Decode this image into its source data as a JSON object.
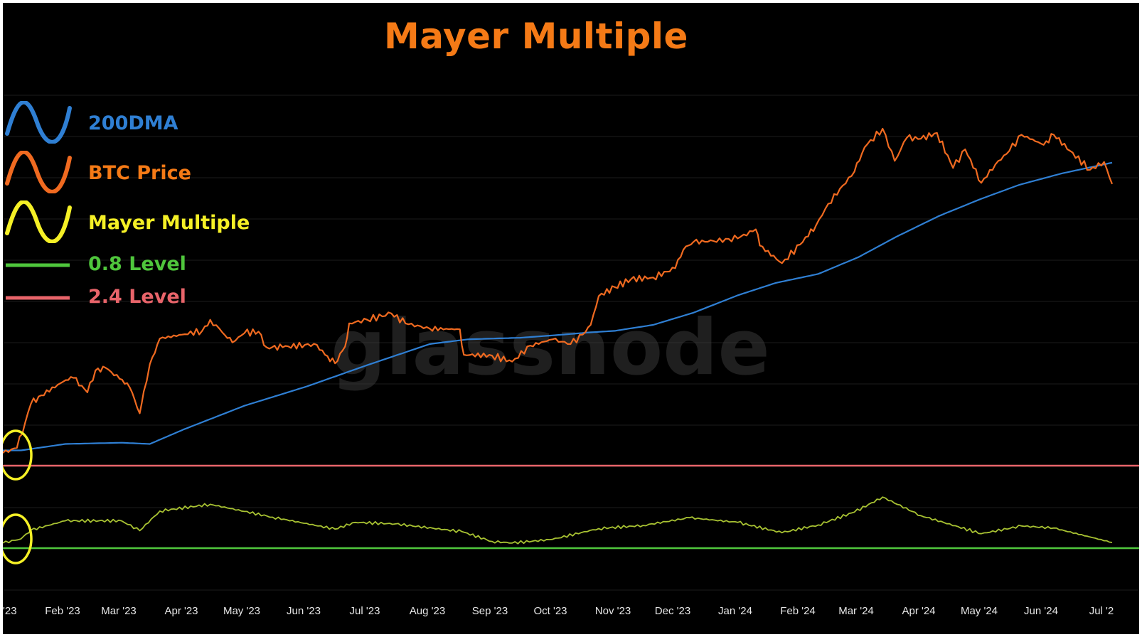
{
  "chart_data": {
    "type": "line",
    "title": "Mayer Multiple",
    "watermark": "glassnode",
    "x_tick_labels": [
      "'23",
      "Feb '23",
      "Mar '23",
      "Apr '23",
      "May '23",
      "Jun '23",
      "Jul '23",
      "Aug '23",
      "Sep '23",
      "Oct '23",
      "Nov '23",
      "Dec '23",
      "Jan '24",
      "Feb '24",
      "Mar '24",
      "Apr '24",
      "May '24",
      "Jun '24",
      "Jul '2"
    ],
    "xlim": [
      "2023-01-01",
      "2024-07-05"
    ],
    "grid": true,
    "legend_position": "top-left",
    "series": [
      {
        "name": "200DMA",
        "color": "#2f7fd3",
        "points": [
          [
            "2023-01-01",
            16800
          ],
          [
            "2023-01-10",
            16800
          ],
          [
            "2023-02-01",
            17300
          ],
          [
            "2023-03-01",
            17400
          ],
          [
            "2023-03-15",
            17300
          ],
          [
            "2023-04-01",
            18500
          ],
          [
            "2023-05-01",
            20600
          ],
          [
            "2023-06-01",
            22500
          ],
          [
            "2023-07-01",
            24800
          ],
          [
            "2023-07-20",
            26300
          ],
          [
            "2023-08-01",
            27300
          ],
          [
            "2023-08-20",
            27900
          ],
          [
            "2023-09-15",
            28100
          ],
          [
            "2023-10-01",
            28400
          ],
          [
            "2023-10-20",
            28800
          ],
          [
            "2023-11-01",
            29000
          ],
          [
            "2023-11-20",
            29800
          ],
          [
            "2023-12-10",
            31500
          ],
          [
            "2024-01-01",
            34100
          ],
          [
            "2024-01-20",
            36100
          ],
          [
            "2024-02-10",
            37600
          ],
          [
            "2024-03-01",
            40600
          ],
          [
            "2024-03-20",
            44600
          ],
          [
            "2024-04-10",
            49000
          ],
          [
            "2024-05-01",
            53000
          ],
          [
            "2024-05-20",
            56500
          ],
          [
            "2024-06-10",
            59500
          ],
          [
            "2024-07-05",
            62500
          ]
        ]
      },
      {
        "name": "BTC Price",
        "color": "#f06a20",
        "points": [
          [
            "2023-01-01",
            16600
          ],
          [
            "2023-01-08",
            17000
          ],
          [
            "2023-01-12",
            19000
          ],
          [
            "2023-01-15",
            20800
          ],
          [
            "2023-01-20",
            21600
          ],
          [
            "2023-01-31",
            23000
          ],
          [
            "2023-02-05",
            23400
          ],
          [
            "2023-02-12",
            21900
          ],
          [
            "2023-02-16",
            24200
          ],
          [
            "2023-02-21",
            24500
          ],
          [
            "2023-02-28",
            23300
          ],
          [
            "2023-03-05",
            22400
          ],
          [
            "2023-03-10",
            19900
          ],
          [
            "2023-03-12",
            22000
          ],
          [
            "2023-03-15",
            24900
          ],
          [
            "2023-03-20",
            28000
          ],
          [
            "2023-03-31",
            28500
          ],
          [
            "2023-04-10",
            29000
          ],
          [
            "2023-04-14",
            30500
          ],
          [
            "2023-04-20",
            28800
          ],
          [
            "2023-04-25",
            27500
          ],
          [
            "2023-05-01",
            28700
          ],
          [
            "2023-05-08",
            28900
          ],
          [
            "2023-05-12",
            26900
          ],
          [
            "2023-05-20",
            26900
          ],
          [
            "2023-05-31",
            27200
          ],
          [
            "2023-06-06",
            27200
          ],
          [
            "2023-06-10",
            26000
          ],
          [
            "2023-06-15",
            25000
          ],
          [
            "2023-06-20",
            27000
          ],
          [
            "2023-06-22",
            30000
          ],
          [
            "2023-07-01",
            30500
          ],
          [
            "2023-07-13",
            31400
          ],
          [
            "2023-07-20",
            30000
          ],
          [
            "2023-08-01",
            29300
          ],
          [
            "2023-08-16",
            29200
          ],
          [
            "2023-08-18",
            26000
          ],
          [
            "2023-09-01",
            25900
          ],
          [
            "2023-09-11",
            25200
          ],
          [
            "2023-09-20",
            27100
          ],
          [
            "2023-10-01",
            27900
          ],
          [
            "2023-10-10",
            27300
          ],
          [
            "2023-10-16",
            28500
          ],
          [
            "2023-10-20",
            29800
          ],
          [
            "2023-10-24",
            34000
          ],
          [
            "2023-11-01",
            35400
          ],
          [
            "2023-11-09",
            36700
          ],
          [
            "2023-11-20",
            37000
          ],
          [
            "2023-12-01",
            38600
          ],
          [
            "2023-12-05",
            42000
          ],
          [
            "2023-12-10",
            43500
          ],
          [
            "2023-12-20",
            43700
          ],
          [
            "2024-01-01",
            44200
          ],
          [
            "2024-01-10",
            46100
          ],
          [
            "2024-01-12",
            42800
          ],
          [
            "2024-01-23",
            39500
          ],
          [
            "2024-02-01",
            43000
          ],
          [
            "2024-02-09",
            47000
          ],
          [
            "2024-02-15",
            51800
          ],
          [
            "2024-02-28",
            60000
          ],
          [
            "2024-03-04",
            67000
          ],
          [
            "2024-03-13",
            73000
          ],
          [
            "2024-03-19",
            63000
          ],
          [
            "2024-03-25",
            70000
          ],
          [
            "2024-04-01",
            69700
          ],
          [
            "2024-04-09",
            71600
          ],
          [
            "2024-04-17",
            61000
          ],
          [
            "2024-04-23",
            66400
          ],
          [
            "2024-05-01",
            57000
          ],
          [
            "2024-05-08",
            62000
          ],
          [
            "2024-05-15",
            66000
          ],
          [
            "2024-05-21",
            71000
          ],
          [
            "2024-06-01",
            67800
          ],
          [
            "2024-06-06",
            71000
          ],
          [
            "2024-06-14",
            66000
          ],
          [
            "2024-06-24",
            60500
          ],
          [
            "2024-07-01",
            62700
          ],
          [
            "2024-07-05",
            56700
          ]
        ]
      },
      {
        "name": "Mayer Multiple",
        "color": "#a8c232",
        "points": [
          [
            "2023-01-01",
            0.9
          ],
          [
            "2023-01-10",
            0.98
          ],
          [
            "2023-01-15",
            1.15
          ],
          [
            "2023-02-01",
            1.33
          ],
          [
            "2023-03-01",
            1.33
          ],
          [
            "2023-03-10",
            1.14
          ],
          [
            "2023-03-20",
            1.52
          ],
          [
            "2023-04-14",
            1.65
          ],
          [
            "2023-05-15",
            1.4
          ],
          [
            "2023-06-15",
            1.17
          ],
          [
            "2023-06-25",
            1.3
          ],
          [
            "2023-07-15",
            1.27
          ],
          [
            "2023-08-17",
            1.12
          ],
          [
            "2023-09-01",
            0.93
          ],
          [
            "2023-09-11",
            0.9
          ],
          [
            "2023-10-01",
            0.97
          ],
          [
            "2023-10-24",
            1.18
          ],
          [
            "2023-11-15",
            1.24
          ],
          [
            "2023-12-08",
            1.39
          ],
          [
            "2024-01-01",
            1.3
          ],
          [
            "2024-01-23",
            1.1
          ],
          [
            "2024-02-10",
            1.25
          ],
          [
            "2024-02-28",
            1.5
          ],
          [
            "2024-03-13",
            1.79
          ],
          [
            "2024-04-01",
            1.43
          ],
          [
            "2024-05-01",
            1.08
          ],
          [
            "2024-05-21",
            1.23
          ],
          [
            "2024-06-06",
            1.19
          ],
          [
            "2024-07-05",
            0.91
          ]
        ]
      }
    ],
    "levels": [
      {
        "name": "0.8 Level",
        "value": 0.8,
        "color": "#4fc63c"
      },
      {
        "name": "2.4 Level",
        "value": 2.4,
        "color": "#e8646a"
      }
    ],
    "legend": [
      {
        "label": "200DMA",
        "icon": "wave-icon",
        "color": "#2f7fd3"
      },
      {
        "label": "BTC Price",
        "icon": "wave-icon",
        "color": "#f06a20"
      },
      {
        "label": "Mayer Multiple",
        "icon": "wave-icon",
        "color": "#f5f026"
      },
      {
        "label": "0.8 Level",
        "icon": "line-icon",
        "color": "#4fc63c"
      },
      {
        "label": "2.4 Level",
        "icon": "line-icon",
        "color": "#e8646a"
      }
    ],
    "annotations": [
      {
        "type": "circle-highlight",
        "color": "#f5f026",
        "near": "2023-01-05",
        "target": "BTC Price"
      },
      {
        "type": "circle-highlight",
        "color": "#f5f026",
        "near": "2023-01-05",
        "target": "Mayer Multiple"
      }
    ]
  }
}
